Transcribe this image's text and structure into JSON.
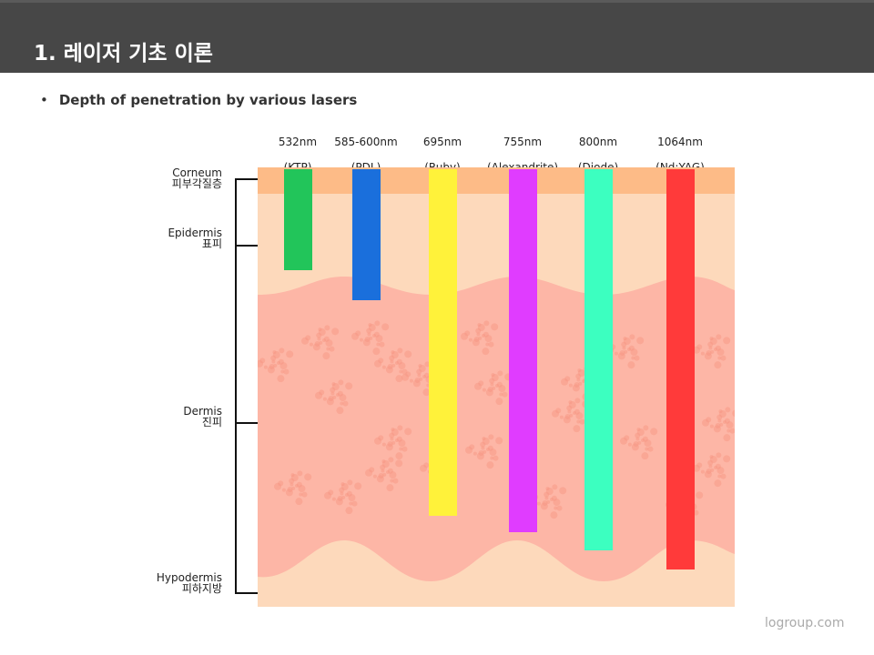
{
  "header": {
    "title": "1. 레이저 기초 이론"
  },
  "bullet": {
    "marker": "•",
    "text": "Depth of penetration by various lasers"
  },
  "lasers": [
    {
      "wavelength": "532nm",
      "name": "(KTP)",
      "color": "#22c55a",
      "depth_fraction": 0.234
    },
    {
      "wavelength": "585-600nm",
      "name": "(PDL)",
      "color": "#1a6fdc",
      "depth_fraction": 0.302
    },
    {
      "wavelength": "695nm",
      "name": "(Ruby)",
      "color": "#fff23a",
      "depth_fraction": 0.793
    },
    {
      "wavelength": "755nm",
      "name": "(Alexandrite)",
      "color": "#e03cff",
      "depth_fraction": 0.83
    },
    {
      "wavelength": "800nm",
      "name": "(Diode)",
      "color": "#3cffc0",
      "depth_fraction": 0.872
    },
    {
      "wavelength": "1064nm",
      "name": "(Nd:YAG)",
      "color": "#ff3a3a",
      "depth_fraction": 0.915
    }
  ],
  "layers": [
    {
      "en": "Corneum",
      "ko": "피부각질층"
    },
    {
      "en": "Epidermis",
      "ko": "표피"
    },
    {
      "en": "Dermis",
      "ko": "진피"
    },
    {
      "en": "Hypodermis",
      "ko": "피하지방"
    }
  ],
  "colors": {
    "corneum": "#fdbb87",
    "epidermis": "#fdd9bb",
    "dermis": "#fdb6a6",
    "spots": "#f79580"
  },
  "footer": {
    "text": "logroup.com"
  }
}
